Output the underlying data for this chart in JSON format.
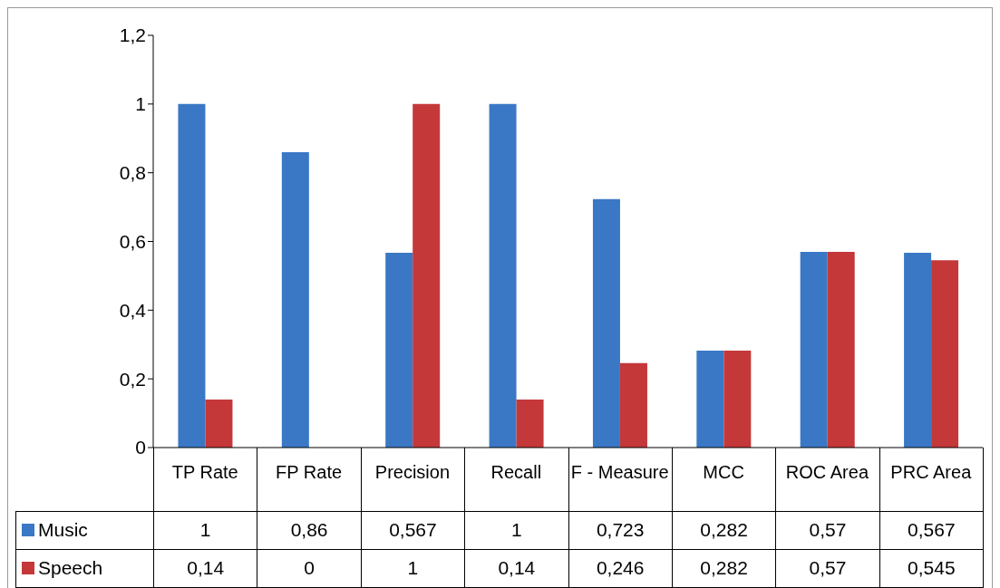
{
  "chart_data": {
    "type": "bar",
    "categories": [
      "TP Rate",
      "FP Rate",
      "Precision",
      "Recall",
      "F - Measure",
      "MCC",
      "ROC Area",
      "PRC Area"
    ],
    "series": [
      {
        "name": "Music",
        "color": "#3a78c6",
        "values": [
          1,
          0.86,
          0.567,
          1,
          0.723,
          0.282,
          0.57,
          0.567
        ],
        "value_labels": [
          "1",
          "0,86",
          "0,567",
          "1",
          "0,723",
          "0,282",
          "0,57",
          "0,567"
        ]
      },
      {
        "name": "Speech",
        "color": "#c4383a",
        "values": [
          0.14,
          0,
          1,
          0.14,
          0.246,
          0.282,
          0.57,
          0.545
        ],
        "value_labels": [
          "0,14",
          "0",
          "1",
          "0,14",
          "0,246",
          "0,282",
          "0,57",
          "0,545"
        ]
      }
    ],
    "ylim": [
      0,
      1.2
    ],
    "yticks": [
      0,
      {
        "value": 0.2,
        "label": "0,2"
      },
      {
        "value": 0.4,
        "label": "0,4"
      },
      {
        "value": 0.6,
        "label": "0,6"
      },
      {
        "value": 0.8,
        "label": "0,8"
      },
      1,
      {
        "value": 1.2,
        "label": "1,2"
      }
    ],
    "legend": "bottom"
  }
}
